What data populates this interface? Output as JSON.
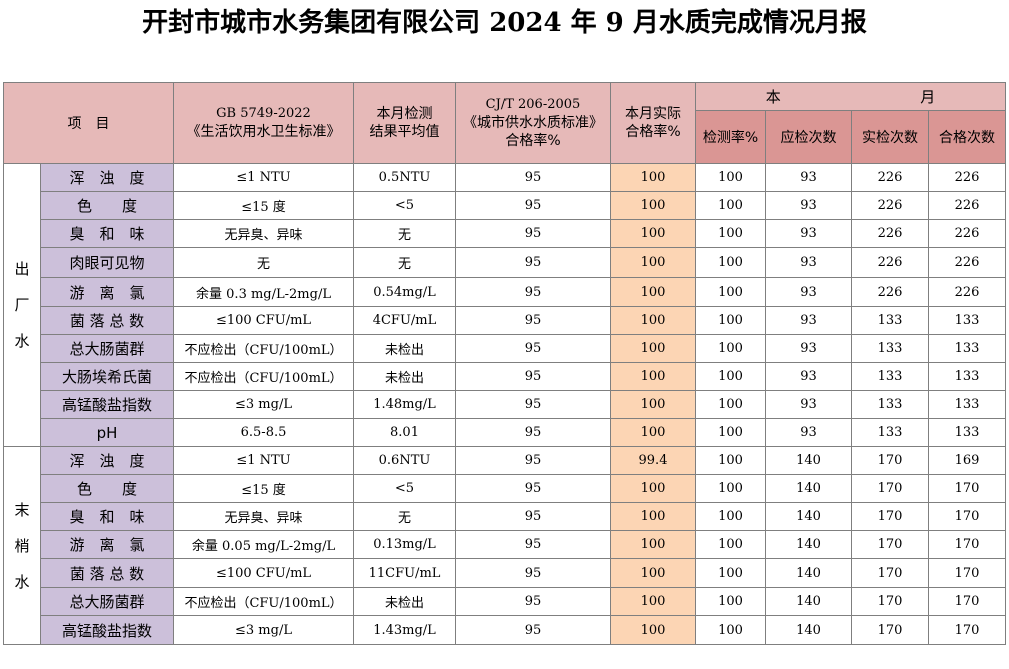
{
  "title": "开封市城市水务集团有限公司 2024 年 9 月水质完成情况月报",
  "header": {
    "item": "项　目",
    "gb_line1": "GB 5749-2022",
    "gb_line2": "《生活饮用水卫生标准》",
    "avg_line1": "本月检测",
    "avg_line2": "结果平均值",
    "cjt_line1": "CJ/T 206-2005",
    "cjt_line2": "《城市供水水质标准》",
    "cjt_line3": "合格率%",
    "actual_line1": "本月实际",
    "actual_line2": "合格率%",
    "month_left": "本",
    "month_right": "月",
    "detect_rate": "检测率%",
    "should_count": "应检次数",
    "actual_count": "实检次数",
    "pass_count": "合格次数"
  },
  "sections": [
    {
      "label_chars": [
        "出",
        "厂",
        "水"
      ],
      "rows": [
        {
          "item": "浑　浊　度",
          "standard": "≤1 NTU",
          "avg": "0.5NTU",
          "cjt_rate": "95",
          "actual_rate": "100",
          "detect_rate": "100",
          "should": "93",
          "actual": "226",
          "pass": "226"
        },
        {
          "item": "色　　度",
          "standard": "≤15 度",
          "avg": "<5",
          "cjt_rate": "95",
          "actual_rate": "100",
          "detect_rate": "100",
          "should": "93",
          "actual": "226",
          "pass": "226"
        },
        {
          "item": "臭　和　味",
          "standard": "无异臭、异味",
          "avg": "无",
          "cjt_rate": "95",
          "actual_rate": "100",
          "detect_rate": "100",
          "should": "93",
          "actual": "226",
          "pass": "226"
        },
        {
          "item": "肉眼可见物",
          "standard": "无",
          "avg": "无",
          "cjt_rate": "95",
          "actual_rate": "100",
          "detect_rate": "100",
          "should": "93",
          "actual": "226",
          "pass": "226"
        },
        {
          "item": "游　离　氯",
          "standard": "余量 0.3 mg/L-2mg/L",
          "avg": "0.54mg/L",
          "cjt_rate": "95",
          "actual_rate": "100",
          "detect_rate": "100",
          "should": "93",
          "actual": "226",
          "pass": "226"
        },
        {
          "item": "菌 落 总 数",
          "standard": "≤100 CFU/mL",
          "avg": "4CFU/mL",
          "cjt_rate": "95",
          "actual_rate": "100",
          "detect_rate": "100",
          "should": "93",
          "actual": "133",
          "pass": "133"
        },
        {
          "item": "总大肠菌群",
          "standard": "不应检出（CFU/100mL）",
          "avg": "未检出",
          "cjt_rate": "95",
          "actual_rate": "100",
          "detect_rate": "100",
          "should": "93",
          "actual": "133",
          "pass": "133"
        },
        {
          "item": "大肠埃希氏菌",
          "standard": "不应检出（CFU/100mL）",
          "avg": "未检出",
          "cjt_rate": "95",
          "actual_rate": "100",
          "detect_rate": "100",
          "should": "93",
          "actual": "133",
          "pass": "133"
        },
        {
          "item": "高锰酸盐指数",
          "standard": "≤3 mg/L",
          "avg": "1.48mg/L",
          "cjt_rate": "95",
          "actual_rate": "100",
          "detect_rate": "100",
          "should": "93",
          "actual": "133",
          "pass": "133"
        },
        {
          "item": "pH",
          "standard": "6.5-8.5",
          "avg": "8.01",
          "cjt_rate": "95",
          "actual_rate": "100",
          "detect_rate": "100",
          "should": "93",
          "actual": "133",
          "pass": "133"
        }
      ]
    },
    {
      "label_chars": [
        "末",
        "梢",
        "水"
      ],
      "rows": [
        {
          "item": "浑　浊　度",
          "standard": "≤1 NTU",
          "avg": "0.6NTU",
          "cjt_rate": "95",
          "actual_rate": "99.4",
          "detect_rate": "100",
          "should": "140",
          "actual": "170",
          "pass": "169"
        },
        {
          "item": "色　　度",
          "standard": "≤15 度",
          "avg": "<5",
          "cjt_rate": "95",
          "actual_rate": "100",
          "detect_rate": "100",
          "should": "140",
          "actual": "170",
          "pass": "170"
        },
        {
          "item": "臭　和　味",
          "standard": "无异臭、异味",
          "avg": "无",
          "cjt_rate": "95",
          "actual_rate": "100",
          "detect_rate": "100",
          "should": "140",
          "actual": "170",
          "pass": "170"
        },
        {
          "item": "游　离　氯",
          "standard": "余量 0.05 mg/L-2mg/L",
          "avg": "0.13mg/L",
          "cjt_rate": "95",
          "actual_rate": "100",
          "detect_rate": "100",
          "should": "140",
          "actual": "170",
          "pass": "170"
        },
        {
          "item": "菌 落 总 数",
          "standard": "≤100 CFU/mL",
          "avg": "11CFU/mL",
          "cjt_rate": "95",
          "actual_rate": "100",
          "detect_rate": "100",
          "should": "140",
          "actual": "170",
          "pass": "170"
        },
        {
          "item": "总大肠菌群",
          "standard": "不应检出（CFU/100mL）",
          "avg": "未检出",
          "cjt_rate": "95",
          "actual_rate": "100",
          "detect_rate": "100",
          "should": "140",
          "actual": "170",
          "pass": "170"
        },
        {
          "item": "高锰酸盐指数",
          "standard": "≤3 mg/L",
          "avg": "1.43mg/L",
          "cjt_rate": "95",
          "actual_rate": "100",
          "detect_rate": "100",
          "should": "140",
          "actual": "170",
          "pass": "170"
        }
      ]
    }
  ]
}
